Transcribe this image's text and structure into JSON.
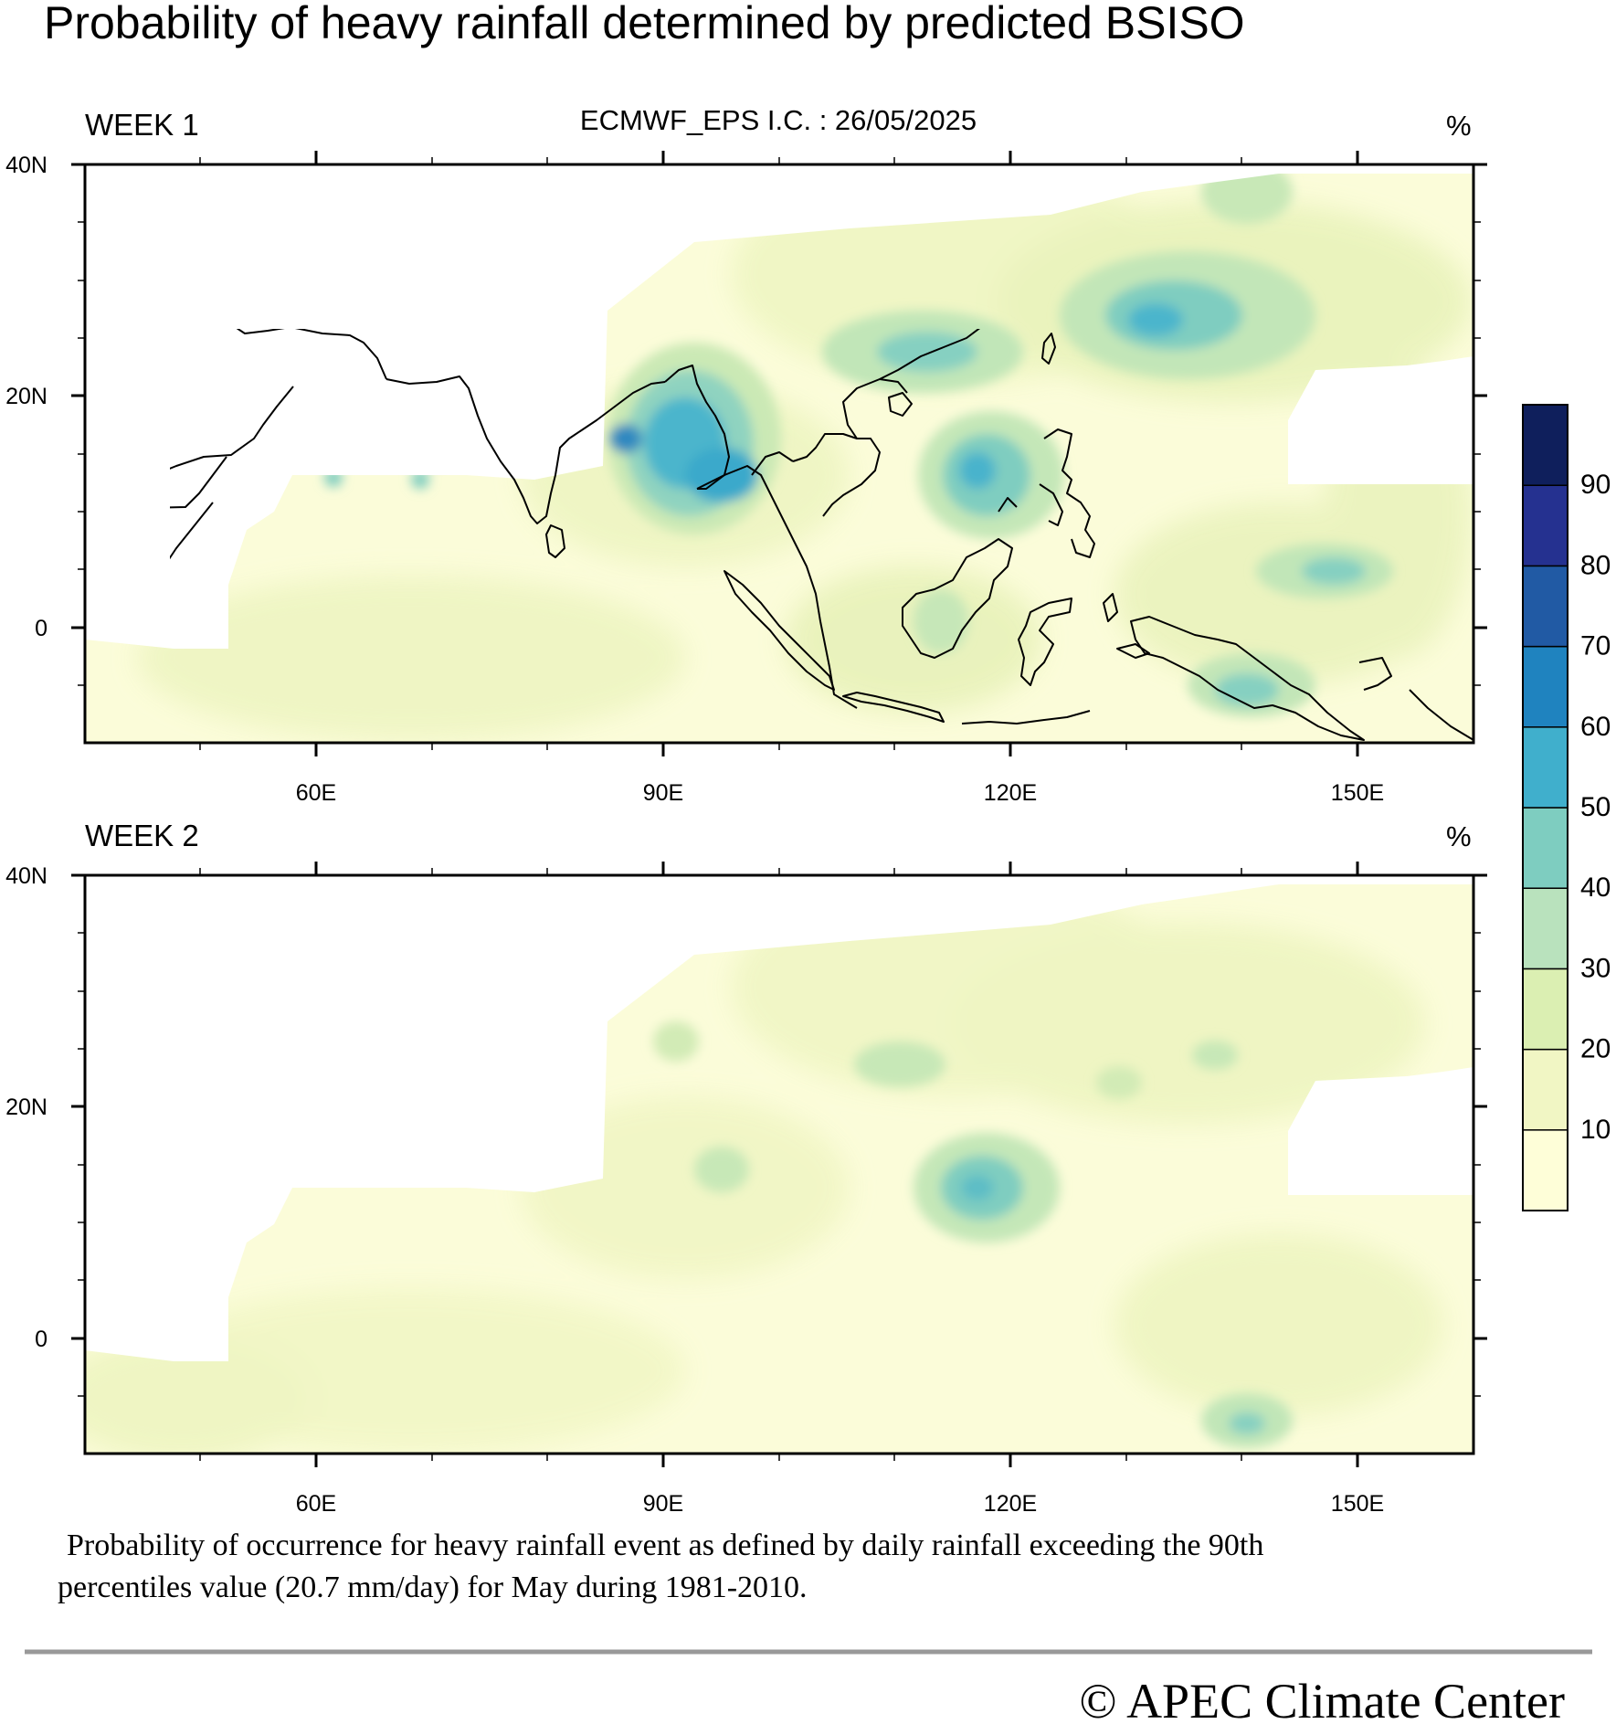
{
  "title": "Probability of heavy rainfall determined by predicted BSISO",
  "subtitle": "ECMWF_EPS  I.C. : 26/05/2025",
  "unit": "%",
  "panels": [
    {
      "label": "WEEK 1"
    },
    {
      "label": "WEEK 2"
    }
  ],
  "map": {
    "lon_range": [
      40,
      160
    ],
    "lat_range": [
      -10,
      40
    ],
    "lon_tick_labels": [
      "60E",
      "90E",
      "120E",
      "150E"
    ],
    "lat_tick_labels": [
      "40N",
      "20N",
      "0"
    ]
  },
  "colorbar": {
    "labels": [
      "10",
      "20",
      "30",
      "40",
      "50",
      "60",
      "70",
      "80",
      "90"
    ],
    "colors": [
      "#fefed8",
      "#f1f6c4",
      "#dbefb2",
      "#b9e2bd",
      "#7ecdc0",
      "#40afcc",
      "#1f83bf",
      "#215aa4",
      "#253190",
      "#0f1f5c"
    ]
  },
  "caption_line1": "Probability of occurrence for heavy rainfall event as defined by daily rainfall exceeding the 90th",
  "caption_line2": "percentiles value (20.7 mm/day) for May during 1981-2010.",
  "copyright": "©  APEC Climate Center"
}
